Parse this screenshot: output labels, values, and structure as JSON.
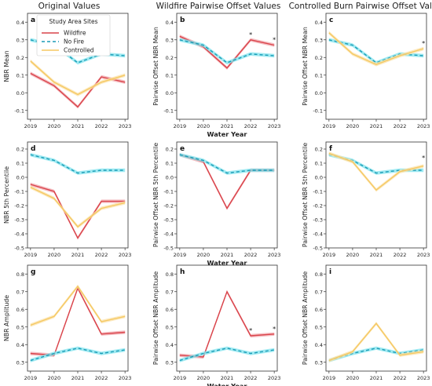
{
  "column_titles": [
    "Original Values",
    "Wildfire Pairwise Offset Values",
    "Controlled Burn Pairwise Offset Values"
  ],
  "legend": {
    "title": "Study Area Sites",
    "entries": [
      {
        "label": "Wildfire",
        "color": "#d9434a",
        "style": "solid"
      },
      {
        "label": "No Fire",
        "color": "#1a9bb5",
        "style": "dashed"
      },
      {
        "label": "Controlled",
        "color": "#f5c862",
        "style": "solid"
      }
    ]
  },
  "colors": {
    "wildfire": "#d9434a",
    "wildfire_band": "#f2a8ad",
    "nofire": "#1a9bb5",
    "nofire_band": "#7fe3ee",
    "controlled": "#f5c862",
    "controlled_band": "#fbe2a8"
  },
  "chart_data": [
    {
      "type": "line",
      "label": "a",
      "xlabel": "",
      "ylabel": "NBR Mean",
      "ylim": [
        -0.15,
        0.45
      ],
      "yticks": [
        "-0.1",
        "0.0",
        "0.1",
        "0.2",
        "0.3",
        "0.4"
      ],
      "yticks_values": [
        -0.1,
        0.0,
        0.1,
        0.2,
        0.3,
        0.4
      ],
      "x": [
        "2019",
        "2020",
        "2021",
        "2022",
        "2023"
      ],
      "series": [
        {
          "name": "Wildfire",
          "values": [
            0.11,
            0.04,
            -0.08,
            0.09,
            0.06
          ]
        },
        {
          "name": "No Fire",
          "values": [
            0.3,
            0.27,
            0.17,
            0.22,
            0.21
          ]
        },
        {
          "name": "Controlled",
          "values": [
            0.18,
            0.06,
            -0.01,
            0.06,
            0.1
          ]
        }
      ],
      "stars": []
    },
    {
      "type": "line",
      "label": "b",
      "xlabel": "Water Year",
      "ylabel": "Pairwise Offset NBR Mean",
      "ylim": [
        -0.15,
        0.45
      ],
      "yticks": [
        "-0.1",
        "0.0",
        "0.1",
        "0.2",
        "0.3",
        "0.4"
      ],
      "yticks_values": [
        -0.1,
        0.0,
        0.1,
        0.2,
        0.3,
        0.4
      ],
      "x": [
        "2019",
        "2020",
        "2021",
        "2022",
        "2023"
      ],
      "series": [
        {
          "name": "Wildfire",
          "values": [
            0.32,
            0.26,
            0.14,
            0.3,
            0.27
          ]
        },
        {
          "name": "No Fire",
          "values": [
            0.3,
            0.27,
            0.17,
            0.22,
            0.21
          ]
        }
      ],
      "stars": [
        {
          "x": "2022",
          "y": 0.3,
          "text": "*"
        },
        {
          "x": "2023",
          "y": 0.27,
          "text": "*"
        }
      ]
    },
    {
      "type": "line",
      "label": "c",
      "xlabel": "",
      "ylabel": "Pairwise Offset NBR Mean",
      "ylim": [
        -0.15,
        0.45
      ],
      "yticks": [
        "-0.1",
        "0.0",
        "0.1",
        "0.2",
        "0.3",
        "0.4"
      ],
      "yticks_values": [
        -0.1,
        0.0,
        0.1,
        0.2,
        0.3,
        0.4
      ],
      "x": [
        "2019",
        "2020",
        "2021",
        "2022",
        "2023"
      ],
      "series": [
        {
          "name": "No Fire",
          "values": [
            0.3,
            0.27,
            0.17,
            0.22,
            0.21
          ]
        },
        {
          "name": "Controlled",
          "values": [
            0.34,
            0.22,
            0.16,
            0.21,
            0.25
          ]
        }
      ],
      "stars": [
        {
          "x": "2023",
          "y": 0.25,
          "text": "*"
        }
      ]
    },
    {
      "type": "line",
      "label": "d",
      "xlabel": "",
      "ylabel": "NBR 5th Percentile",
      "ylim": [
        -0.5,
        0.25
      ],
      "yticks": [
        "-0.5",
        "-0.4",
        "-0.3",
        "-0.2",
        "-0.1",
        "0.0",
        "0.1",
        "0.2"
      ],
      "yticks_values": [
        -0.5,
        -0.4,
        -0.3,
        -0.2,
        -0.1,
        0.0,
        0.1,
        0.2
      ],
      "x": [
        "2019",
        "2020",
        "2021",
        "2022",
        "2023"
      ],
      "series": [
        {
          "name": "Wildfire",
          "values": [
            -0.05,
            -0.1,
            -0.43,
            -0.17,
            -0.17
          ]
        },
        {
          "name": "No Fire",
          "values": [
            0.16,
            0.12,
            0.03,
            0.05,
            0.05
          ]
        },
        {
          "name": "Controlled",
          "values": [
            -0.07,
            -0.15,
            -0.35,
            -0.22,
            -0.18
          ]
        }
      ],
      "stars": []
    },
    {
      "type": "line",
      "label": "e",
      "xlabel": "Water Year",
      "ylabel": "Pairwise Offset NBR 5th Percentile",
      "ylim": [
        -0.5,
        0.25
      ],
      "yticks": [
        "-0.5",
        "-0.4",
        "-0.3",
        "-0.2",
        "-0.1",
        "0.0",
        "0.1",
        "0.2"
      ],
      "yticks_values": [
        -0.5,
        -0.4,
        -0.3,
        -0.2,
        -0.1,
        0.0,
        0.1,
        0.2
      ],
      "x": [
        "2019",
        "2020",
        "2021",
        "2022",
        "2023"
      ],
      "series": [
        {
          "name": "Wildfire",
          "values": [
            0.16,
            0.11,
            -0.22,
            0.05,
            0.05
          ]
        },
        {
          "name": "No Fire",
          "values": [
            0.16,
            0.12,
            0.03,
            0.05,
            0.05
          ]
        }
      ],
      "stars": []
    },
    {
      "type": "line",
      "label": "f",
      "xlabel": "",
      "ylabel": "Pairwise Offset NBR 5th Percentile",
      "ylim": [
        -0.5,
        0.25
      ],
      "yticks": [
        "-0.5",
        "-0.4",
        "-0.3",
        "-0.2",
        "-0.1",
        "0.0",
        "0.1",
        "0.2"
      ],
      "yticks_values": [
        -0.5,
        -0.4,
        -0.3,
        -0.2,
        -0.1,
        0.0,
        0.1,
        0.2
      ],
      "x": [
        "2019",
        "2020",
        "2021",
        "2022",
        "2023"
      ],
      "series": [
        {
          "name": "No Fire",
          "values": [
            0.16,
            0.12,
            0.03,
            0.05,
            0.05
          ]
        },
        {
          "name": "Controlled",
          "values": [
            0.17,
            0.11,
            -0.09,
            0.04,
            0.08
          ]
        }
      ],
      "stars": [
        {
          "x": "2023",
          "y": 0.1,
          "text": "*"
        }
      ]
    },
    {
      "type": "line",
      "label": "g",
      "xlabel": "",
      "ylabel": "NBR Amplitude",
      "ylim": [
        0.25,
        0.85
      ],
      "yticks": [
        "0.3",
        "0.4",
        "0.5",
        "0.6",
        "0.7",
        "0.8"
      ],
      "yticks_values": [
        0.3,
        0.4,
        0.5,
        0.6,
        0.7,
        0.8
      ],
      "x": [
        "2019",
        "2020",
        "2021",
        "2022",
        "2023"
      ],
      "series": [
        {
          "name": "Wildfire",
          "values": [
            0.35,
            0.34,
            0.72,
            0.46,
            0.47
          ]
        },
        {
          "name": "No Fire",
          "values": [
            0.31,
            0.35,
            0.38,
            0.35,
            0.37
          ]
        },
        {
          "name": "Controlled",
          "values": [
            0.51,
            0.56,
            0.73,
            0.53,
            0.56
          ]
        }
      ],
      "stars": []
    },
    {
      "type": "line",
      "label": "h",
      "xlabel": "Water Year",
      "ylabel": "Pairwise Offset NBR Amplitude",
      "ylim": [
        0.25,
        0.85
      ],
      "yticks": [
        "0.3",
        "0.4",
        "0.5",
        "0.6",
        "0.7",
        "0.8"
      ],
      "yticks_values": [
        0.3,
        0.4,
        0.5,
        0.6,
        0.7,
        0.8
      ],
      "x": [
        "2019",
        "2020",
        "2021",
        "2022",
        "2023"
      ],
      "series": [
        {
          "name": "Wildfire",
          "values": [
            0.34,
            0.33,
            0.7,
            0.45,
            0.46
          ]
        },
        {
          "name": "No Fire",
          "values": [
            0.31,
            0.35,
            0.38,
            0.35,
            0.37
          ]
        }
      ],
      "stars": [
        {
          "x": "2022",
          "y": 0.45,
          "text": "*"
        },
        {
          "x": "2023",
          "y": 0.46,
          "text": "*"
        }
      ]
    },
    {
      "type": "line",
      "label": "i",
      "xlabel": "",
      "ylabel": "Pairwise Offset NBR Amplitude",
      "ylim": [
        0.25,
        0.85
      ],
      "yticks": [
        "0.3",
        "0.4",
        "0.5",
        "0.6",
        "0.7",
        "0.8"
      ],
      "yticks_values": [
        0.3,
        0.4,
        0.5,
        0.6,
        0.7,
        0.8
      ],
      "x": [
        "2019",
        "2020",
        "2021",
        "2022",
        "2023"
      ],
      "series": [
        {
          "name": "No Fire",
          "values": [
            0.31,
            0.35,
            0.38,
            0.35,
            0.37
          ]
        },
        {
          "name": "Controlled",
          "values": [
            0.31,
            0.36,
            0.52,
            0.34,
            0.36
          ]
        }
      ],
      "stars": []
    }
  ]
}
